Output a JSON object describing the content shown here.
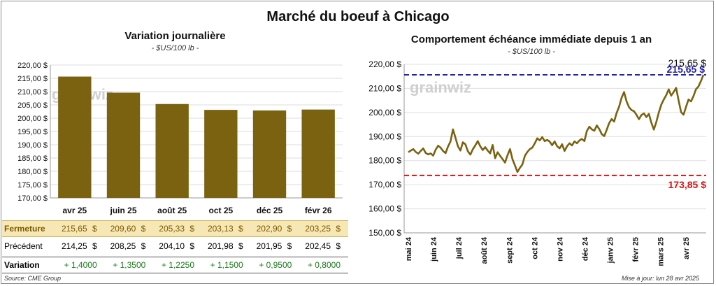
{
  "title": "Marché du boeuf à Chicago",
  "left_panel": {
    "title": "Variation journalière",
    "unit": "- $US/100 lb -"
  },
  "right_panel": {
    "title": "Comportement échéance immédiate depuis 1 an",
    "unit": "- $US/100 lb -"
  },
  "watermark": "grainwiz",
  "table": {
    "rows": [
      {
        "label": "Fermeture",
        "values": [
          "215,65",
          "209,60",
          "205,33",
          "203,13",
          "202,90",
          "203,25"
        ],
        "currency": "$"
      },
      {
        "label": "Précédent",
        "values": [
          "214,25",
          "208,25",
          "204,10",
          "201,98",
          "201,95",
          "202,45"
        ],
        "currency": "$"
      },
      {
        "label": "Variation",
        "values": [
          "+ 1,4000",
          "+ 1,3500",
          "+ 1,2250",
          "+ 1,1500",
          "+ 0,9500",
          "+ 0,8000"
        ],
        "currency": ""
      }
    ]
  },
  "footer": {
    "source": "Source: CME Group",
    "updated": "Mise à jour: lun 28 avr 2025"
  },
  "colors": {
    "bar": "#7a6210",
    "line": "#7a6210",
    "high_line": "#2222aa",
    "low_line": "#dd1111",
    "table_highlight": "#f7e7b4",
    "positive": "#1a7a1a"
  },
  "chart_data": [
    {
      "type": "bar",
      "categories": [
        "avr 25",
        "juin 25",
        "août 25",
        "oct 25",
        "déc 25",
        "févr 26"
      ],
      "values": [
        215.65,
        209.6,
        205.33,
        203.13,
        202.9,
        203.25
      ],
      "ylim": [
        170,
        220
      ],
      "yticks": [
        "170,00 $",
        "175,00 $",
        "180,00 $",
        "185,00 $",
        "190,00 $",
        "195,00 $",
        "200,00 $",
        "205,00 $",
        "210,00 $",
        "215,00 $",
        "220,00 $"
      ],
      "grid": true
    },
    {
      "type": "line",
      "x_labels": [
        "mai 24",
        "juin 24",
        "juil 24",
        "août 24",
        "sept 24",
        "oct 24",
        "nov 24",
        "déc 24",
        "janv 25",
        "févr 25",
        "mars 25",
        "avr 25"
      ],
      "values": [
        183.5,
        184.2,
        184.8,
        183.6,
        182.9,
        184.0,
        185.1,
        183.2,
        182.6,
        183.0,
        182.1,
        184.5,
        186.2,
        185.4,
        184.0,
        183.1,
        185.8,
        188.0,
        193.0,
        189.5,
        186.0,
        184.2,
        187.6,
        186.8,
        183.9,
        182.5,
        184.7,
        186.3,
        188.1,
        186.0,
        184.4,
        185.6,
        184.2,
        183.0,
        186.5,
        181.0,
        183.5,
        182.0,
        180.6,
        179.2,
        182.2,
        184.8,
        180.6,
        178.0,
        175.3,
        177.0,
        178.4,
        182.0,
        183.6,
        184.8,
        185.4,
        187.2,
        189.3,
        188.4,
        189.8,
        188.1,
        188.6,
        187.9,
        186.4,
        188.0,
        186.0,
        185.1,
        186.8,
        184.0,
        186.0,
        187.2,
        186.3,
        188.0,
        187.2,
        188.4,
        189.0,
        188.1,
        192.3,
        194.1,
        193.0,
        192.4,
        194.6,
        193.1,
        191.0,
        190.2,
        192.8,
        195.6,
        197.3,
        196.2,
        199.8,
        202.4,
        206.1,
        208.5,
        204.6,
        202.2,
        201.0,
        200.5,
        199.0,
        197.2,
        198.9,
        199.6,
        198.1,
        199.4,
        195.8,
        192.9,
        196.0,
        200.0,
        203.2,
        205.4,
        207.2,
        209.6,
        207.0,
        208.5,
        210.2,
        205.0,
        200.1,
        199.1,
        202.4,
        205.4,
        204.6,
        206.8,
        209.7,
        210.8,
        213.1,
        215.65
      ],
      "ylim": [
        150,
        220
      ],
      "yticks": [
        "150,00 $",
        "160,00 $",
        "170,00 $",
        "180,00 $",
        "190,00 $",
        "200,00 $",
        "210,00 $",
        "220,00 $"
      ],
      "last_label": "215,65 $",
      "high_label": "215,65 $",
      "high": 215.65,
      "low_label": "173,85 $",
      "low": 173.85,
      "grid": true
    }
  ]
}
